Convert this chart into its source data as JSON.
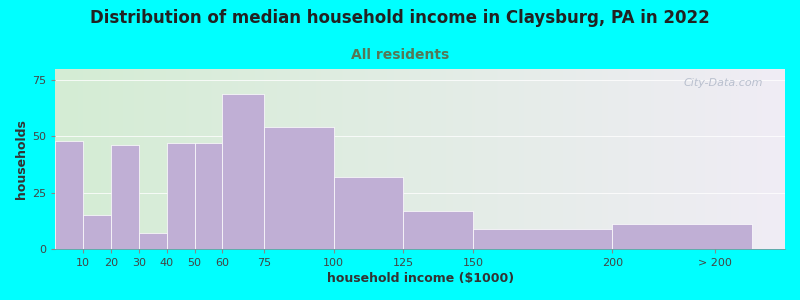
{
  "title": "Distribution of median household income in Claysburg, PA in 2022",
  "subtitle": "All residents",
  "xlabel": "household income ($1000)",
  "ylabel": "households",
  "background_color": "#00FFFF",
  "plot_bg_gradient_left": "#d4edd4",
  "plot_bg_gradient_right": "#f0ecf5",
  "bar_color": "#c0afd5",
  "categories": [
    "10",
    "20",
    "30",
    "40",
    "50",
    "60",
    "75",
    "100",
    "125",
    "150",
    "200",
    "> 200"
  ],
  "values": [
    48,
    15,
    46,
    7,
    47,
    47,
    69,
    54,
    32,
    17,
    9,
    11
  ],
  "bar_widths": [
    10,
    10,
    10,
    10,
    10,
    10,
    15,
    25,
    25,
    25,
    50,
    50
  ],
  "bar_lefts": [
    0,
    10,
    20,
    30,
    40,
    50,
    60,
    75,
    100,
    125,
    150,
    200
  ],
  "xlim": [
    0,
    262
  ],
  "ylim": [
    0,
    80
  ],
  "yticks": [
    0,
    25,
    50,
    75
  ],
  "xtick_positions": [
    10,
    20,
    30,
    40,
    50,
    60,
    75,
    100,
    125,
    150,
    200,
    237
  ],
  "title_fontsize": 12,
  "subtitle_fontsize": 10,
  "title_color": "#222222",
  "subtitle_color": "#557755",
  "axis_label_fontsize": 9,
  "tick_fontsize": 8,
  "watermark_text": "City-Data.com",
  "watermark_color": "#b0b8c8"
}
